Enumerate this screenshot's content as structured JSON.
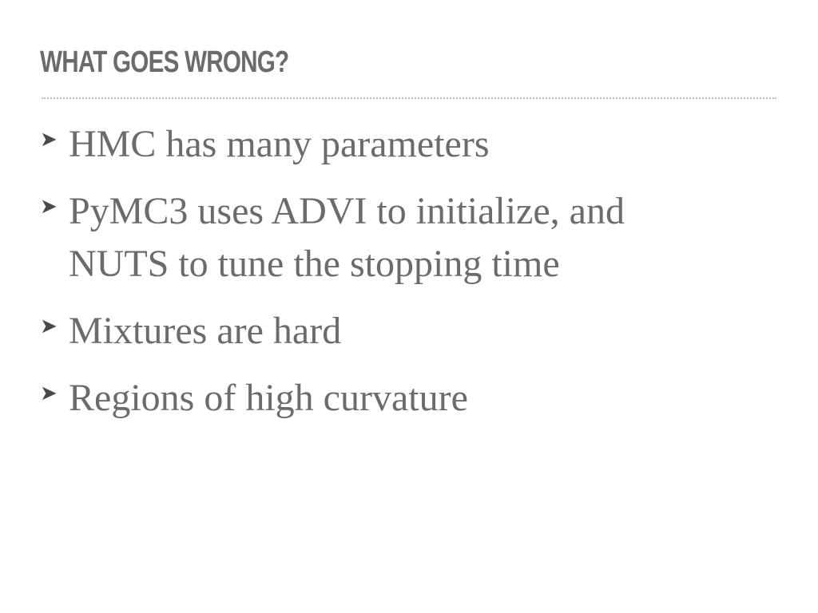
{
  "slide": {
    "title": "WHAT GOES WRONG?",
    "bullet_marker": "➤",
    "bullets": [
      {
        "text": "HMC has many parameters"
      },
      {
        "text": "PyMC3 uses ADVI to initialize, and NUTS to tune the stopping time"
      },
      {
        "text": "Mixtures are hard"
      },
      {
        "text": "Regions of high curvature"
      }
    ]
  },
  "colors": {
    "title": "#6b6b6b",
    "body_text": "#6b6b6b",
    "marker": "#4a4a4a",
    "rule": "#bdbdbd",
    "background": "#ffffff"
  }
}
